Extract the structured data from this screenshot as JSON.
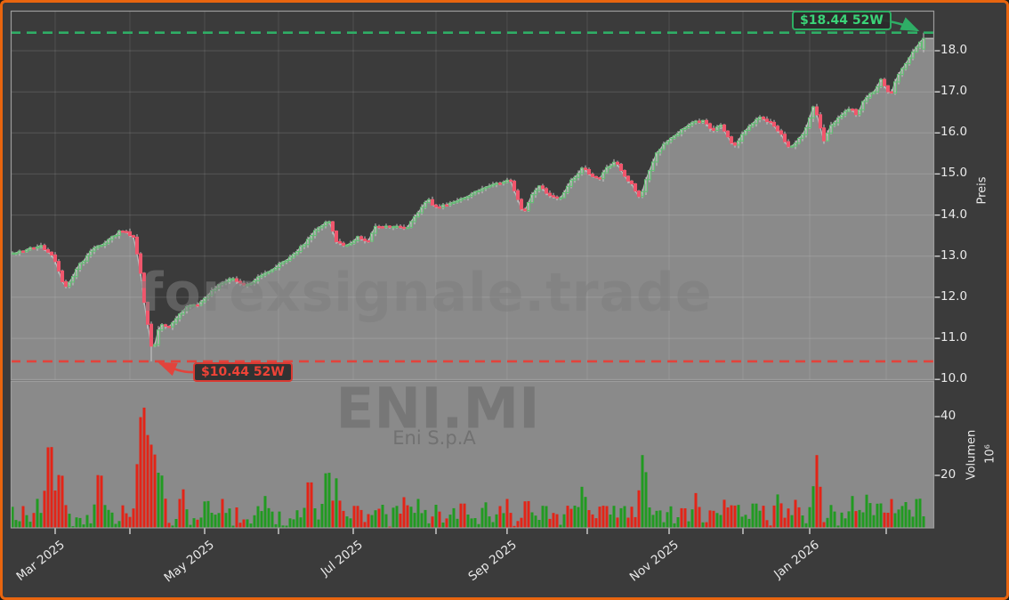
{
  "frame": {
    "border_color": "#e8650f",
    "background": "#3b3b3b",
    "panel_fill": "#8a8a8a"
  },
  "watermarks": {
    "site": "forexsignale.trade",
    "symbol": "ENI.MI",
    "company": "Eni S.p.A"
  },
  "annotations": {
    "high": {
      "label": "$18.44 52W",
      "value": 18.44,
      "color": "#3bd478"
    },
    "low": {
      "label": "$10.44 52W",
      "value": 10.44,
      "color": "#ef4337"
    }
  },
  "axes": {
    "price": {
      "label": "Preis",
      "ticks": [
        "18.0",
        "17.0",
        "16.0",
        "15.0",
        "14.0",
        "13.0",
        "12.0",
        "11.0",
        "10.0"
      ],
      "tick_values": [
        18,
        17,
        16,
        15,
        14,
        13,
        12,
        11,
        10
      ]
    },
    "volume": {
      "label": "Volumen",
      "unit": "10⁶",
      "ticks": [
        "40",
        "20"
      ],
      "tick_values": [
        40,
        20
      ]
    },
    "x": {
      "major_ticks": [
        {
          "t": 0.0482,
          "label": "Mar 2025"
        },
        {
          "t": 0.21,
          "label": "May 2025"
        },
        {
          "t": 0.3709,
          "label": "Jul 2025"
        },
        {
          "t": 0.5375,
          "label": "Sep 2025"
        },
        {
          "t": 0.7129,
          "label": "Nov 2025"
        },
        {
          "t": 0.8651,
          "label": "Jan 2026"
        }
      ],
      "minor_ticks": [
        0.1291,
        0.29,
        0.4605,
        0.6243,
        0.7929,
        0.948
      ]
    }
  },
  "chart_data": {
    "type": "candlestick",
    "symbol": "ENI.MI",
    "subpanel": "volume",
    "price_ylim": [
      9.9,
      19.0
    ],
    "volume_ylim_millions": [
      0,
      50
    ],
    "high_52w": 18.44,
    "low_52w": 10.44,
    "colors": {
      "candle_up": "#63bd74",
      "candle_down": "#f0566c",
      "wick": "#d2d2d2",
      "volume_up": "#219a21",
      "volume_down": "#e32417",
      "area_fill": "#8a8a8a",
      "line": "#b8b8b8",
      "dashed_high": "#2fae66",
      "dashed_low": "#e2433c"
    },
    "close_anchors": [
      [
        0.0,
        13.05
      ],
      [
        0.013,
        13.12
      ],
      [
        0.032,
        13.25
      ],
      [
        0.046,
        13.02
      ],
      [
        0.058,
        12.22
      ],
      [
        0.066,
        12.45
      ],
      [
        0.075,
        12.8
      ],
      [
        0.09,
        13.18
      ],
      [
        0.104,
        13.35
      ],
      [
        0.119,
        13.62
      ],
      [
        0.125,
        13.58
      ],
      [
        0.133,
        13.45
      ],
      [
        0.139,
        12.85
      ],
      [
        0.145,
        11.8
      ],
      [
        0.15,
        11.1
      ],
      [
        0.154,
        10.62
      ],
      [
        0.158,
        11.1
      ],
      [
        0.164,
        11.35
      ],
      [
        0.172,
        11.28
      ],
      [
        0.18,
        11.5
      ],
      [
        0.189,
        11.75
      ],
      [
        0.196,
        11.85
      ],
      [
        0.202,
        11.78
      ],
      [
        0.212,
        12.0
      ],
      [
        0.22,
        12.2
      ],
      [
        0.231,
        12.4
      ],
      [
        0.241,
        12.45
      ],
      [
        0.251,
        12.3
      ],
      [
        0.26,
        12.35
      ],
      [
        0.273,
        12.55
      ],
      [
        0.285,
        12.7
      ],
      [
        0.295,
        12.85
      ],
      [
        0.306,
        13.05
      ],
      [
        0.318,
        13.3
      ],
      [
        0.328,
        13.6
      ],
      [
        0.337,
        13.75
      ],
      [
        0.345,
        13.85
      ],
      [
        0.353,
        13.35
      ],
      [
        0.364,
        13.25
      ],
      [
        0.377,
        13.5
      ],
      [
        0.386,
        13.3
      ],
      [
        0.394,
        13.7
      ],
      [
        0.412,
        13.72
      ],
      [
        0.429,
        13.7
      ],
      [
        0.436,
        13.9
      ],
      [
        0.443,
        14.1
      ],
      [
        0.451,
        14.4
      ],
      [
        0.462,
        14.15
      ],
      [
        0.475,
        14.3
      ],
      [
        0.489,
        14.4
      ],
      [
        0.506,
        14.6
      ],
      [
        0.523,
        14.75
      ],
      [
        0.533,
        14.8
      ],
      [
        0.54,
        14.9
      ],
      [
        0.547,
        14.5
      ],
      [
        0.555,
        14.05
      ],
      [
        0.565,
        14.5
      ],
      [
        0.573,
        14.7
      ],
      [
        0.583,
        14.45
      ],
      [
        0.595,
        14.4
      ],
      [
        0.605,
        14.8
      ],
      [
        0.615,
        15.0
      ],
      [
        0.62,
        15.2
      ],
      [
        0.626,
        15.0
      ],
      [
        0.636,
        14.85
      ],
      [
        0.646,
        15.15
      ],
      [
        0.656,
        15.3
      ],
      [
        0.663,
        15.0
      ],
      [
        0.672,
        14.75
      ],
      [
        0.682,
        14.4
      ],
      [
        0.69,
        15.0
      ],
      [
        0.699,
        15.5
      ],
      [
        0.711,
        15.8
      ],
      [
        0.723,
        16.0
      ],
      [
        0.737,
        16.25
      ],
      [
        0.75,
        16.3
      ],
      [
        0.759,
        16.05
      ],
      [
        0.769,
        16.2
      ],
      [
        0.776,
        15.95
      ],
      [
        0.783,
        15.65
      ],
      [
        0.793,
        16.0
      ],
      [
        0.804,
        16.25
      ],
      [
        0.81,
        16.4
      ],
      [
        0.819,
        16.3
      ],
      [
        0.827,
        16.15
      ],
      [
        0.836,
        15.9
      ],
      [
        0.843,
        15.6
      ],
      [
        0.851,
        15.8
      ],
      [
        0.86,
        16.05
      ],
      [
        0.87,
        16.7
      ],
      [
        0.88,
        15.8
      ],
      [
        0.887,
        16.15
      ],
      [
        0.894,
        16.3
      ],
      [
        0.902,
        16.5
      ],
      [
        0.91,
        16.6
      ],
      [
        0.916,
        16.45
      ],
      [
        0.925,
        16.85
      ],
      [
        0.936,
        17.0
      ],
      [
        0.942,
        17.3
      ],
      [
        0.952,
        16.9
      ],
      [
        0.96,
        17.35
      ],
      [
        0.968,
        17.65
      ],
      [
        0.976,
        17.95
      ],
      [
        0.983,
        18.15
      ],
      [
        0.988,
        18.28
      ]
    ],
    "volume_base_range_millions": [
      2.5,
      10
    ],
    "volume_spikes": [
      [
        0.0289,
        12,
        "g"
      ],
      [
        0.0424,
        37,
        "r"
      ],
      [
        0.0539,
        25,
        "r"
      ],
      [
        0.0963,
        25,
        "r"
      ],
      [
        0.1407,
        40,
        "r"
      ],
      [
        0.1455,
        48,
        "r"
      ],
      [
        0.1503,
        38,
        "r"
      ],
      [
        0.157,
        30,
        "r"
      ],
      [
        0.1638,
        20,
        "g"
      ],
      [
        0.1859,
        17,
        "r"
      ],
      [
        0.212,
        14,
        "g"
      ],
      [
        0.2293,
        12,
        "r"
      ],
      [
        0.2755,
        13,
        "g"
      ],
      [
        0.3237,
        22,
        "r"
      ],
      [
        0.343,
        26,
        "g"
      ],
      [
        0.3526,
        19,
        "g"
      ],
      [
        0.3738,
        12,
        "r"
      ],
      [
        0.4027,
        10,
        "g"
      ],
      [
        0.4268,
        14,
        "r"
      ],
      [
        0.4412,
        12,
        "g"
      ],
      [
        0.4605,
        10,
        "g"
      ],
      [
        0.4894,
        13,
        "r"
      ],
      [
        0.5135,
        12,
        "g"
      ],
      [
        0.5376,
        12,
        "r"
      ],
      [
        0.5588,
        14,
        "r"
      ],
      [
        0.578,
        12,
        "g"
      ],
      [
        0.605,
        10,
        "r"
      ],
      [
        0.6195,
        18,
        "g"
      ],
      [
        0.6435,
        12,
        "r"
      ],
      [
        0.6628,
        11,
        "g"
      ],
      [
        0.685,
        30,
        "g"
      ],
      [
        0.7014,
        10,
        "g"
      ],
      [
        0.7283,
        11,
        "r"
      ],
      [
        0.7418,
        14,
        "r"
      ],
      [
        0.7591,
        10,
        "r"
      ],
      [
        0.7736,
        13,
        "r"
      ],
      [
        0.788,
        10,
        "g"
      ],
      [
        0.8054,
        13,
        "g"
      ],
      [
        0.8314,
        15,
        "g"
      ],
      [
        0.8507,
        13,
        "r"
      ],
      [
        0.8728,
        27,
        "r"
      ],
      [
        0.8892,
        11,
        "g"
      ],
      [
        0.9114,
        13,
        "g"
      ],
      [
        0.9278,
        15,
        "g"
      ],
      [
        0.9403,
        13,
        "g"
      ],
      [
        0.9537,
        12,
        "r"
      ],
      [
        0.9691,
        11,
        "g"
      ],
      [
        0.9827,
        15,
        "g"
      ],
      [
        0.9923,
        10,
        "r"
      ]
    ]
  }
}
